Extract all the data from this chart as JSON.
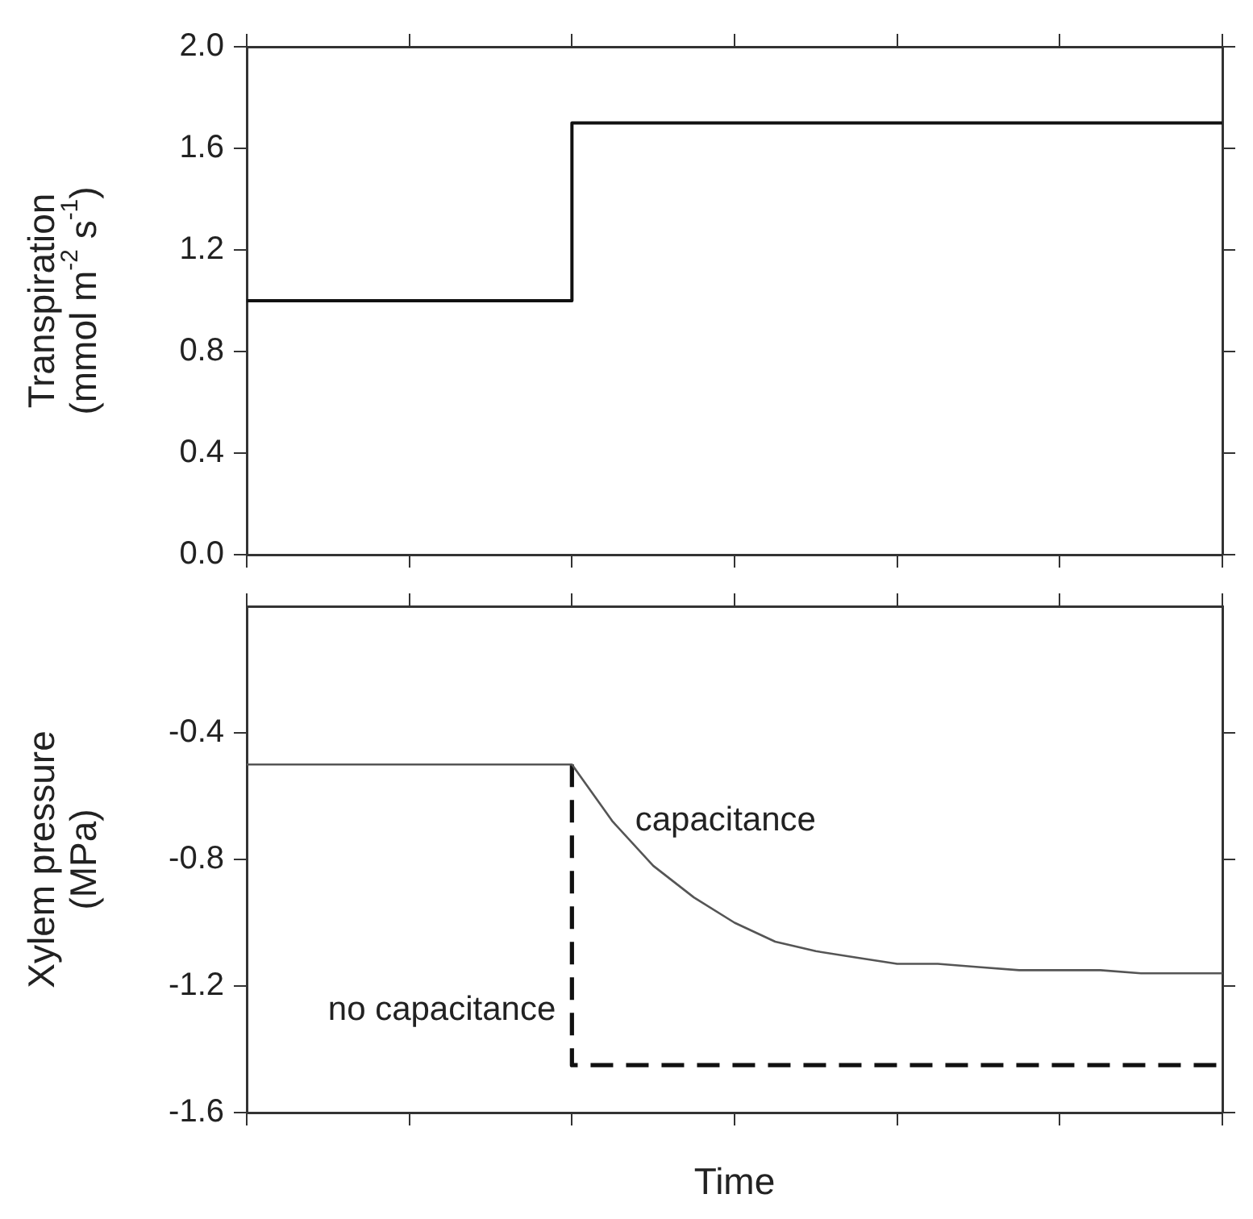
{
  "chart_data": [
    {
      "type": "step",
      "ylabel": "Transpiration\n(mmol m$^{-2}$ s$^{-1}$)",
      "categories": [
        null,
        null,
        null,
        null,
        null,
        null,
        null
      ],
      "ylim": [
        0,
        2
      ],
      "yticks": [
        {
          "value": 0,
          "label": "0.0"
        },
        {
          "value": 0.4,
          "label": "0.4"
        },
        {
          "value": 0.8,
          "label": "0.8"
        },
        {
          "value": 1.2,
          "label": "1.2"
        },
        {
          "value": 1.6,
          "label": "1.6"
        },
        {
          "value": 2,
          "label": "2.0"
        }
      ],
      "tick_labels": "y",
      "grid": false,
      "legend": false,
      "marker": "none",
      "series": [
        {
          "values": [
            1.0,
            1.0,
            1.0,
            1.7,
            1.7,
            1.7,
            1.7
          ],
          "color": "#111111",
          "line_style": "solid"
        }
      ]
    },
    {
      "type": "line",
      "xlabel": "Time",
      "ylabel": "Xylem pressure\n(MPa)",
      "categories": [
        null,
        null,
        null,
        null,
        null,
        null,
        null,
        null,
        null,
        null,
        null,
        null,
        null,
        null,
        null,
        null,
        null,
        null,
        null,
        null,
        null,
        null,
        null,
        null,
        null
      ],
      "ylim": [
        -1.6,
        0
      ],
      "yticks": [
        {
          "value": -1.6,
          "label": "-1.6"
        },
        {
          "value": -1.2,
          "label": "-1.2"
        },
        {
          "value": -0.8,
          "label": "-0.8"
        },
        {
          "value": -0.4,
          "label": "-0.4"
        }
      ],
      "tick_labels": "y",
      "grid": false,
      "legend": false,
      "marker": "none",
      "series": [
        {
          "name": "capacitance",
          "values": [
            -0.5,
            -0.5,
            -0.5,
            -0.5,
            -0.5,
            -0.5,
            -0.5,
            -0.5,
            -0.5,
            -0.68,
            -0.82,
            -0.92,
            -1.0,
            -1.06,
            -1.09,
            -1.11,
            -1.13,
            -1.13,
            -1.14,
            -1.15,
            -1.15,
            -1.15,
            -1.16,
            -1.16,
            -1.16
          ],
          "color": "#555555",
          "line_style": "solid"
        },
        {
          "name": "no capacitance",
          "type": "step",
          "values": [
            null,
            null,
            null,
            null,
            null,
            null,
            null,
            null,
            -0.5,
            -1.45,
            -1.45,
            -1.45,
            -1.45,
            -1.45,
            -1.45,
            -1.45,
            -1.45,
            -1.45,
            -1.45,
            -1.45,
            -1.45,
            -1.45,
            -1.45,
            -1.45,
            -1.45
          ],
          "color": "#111111",
          "line_style": "dashed"
        }
      ]
    }
  ]
}
